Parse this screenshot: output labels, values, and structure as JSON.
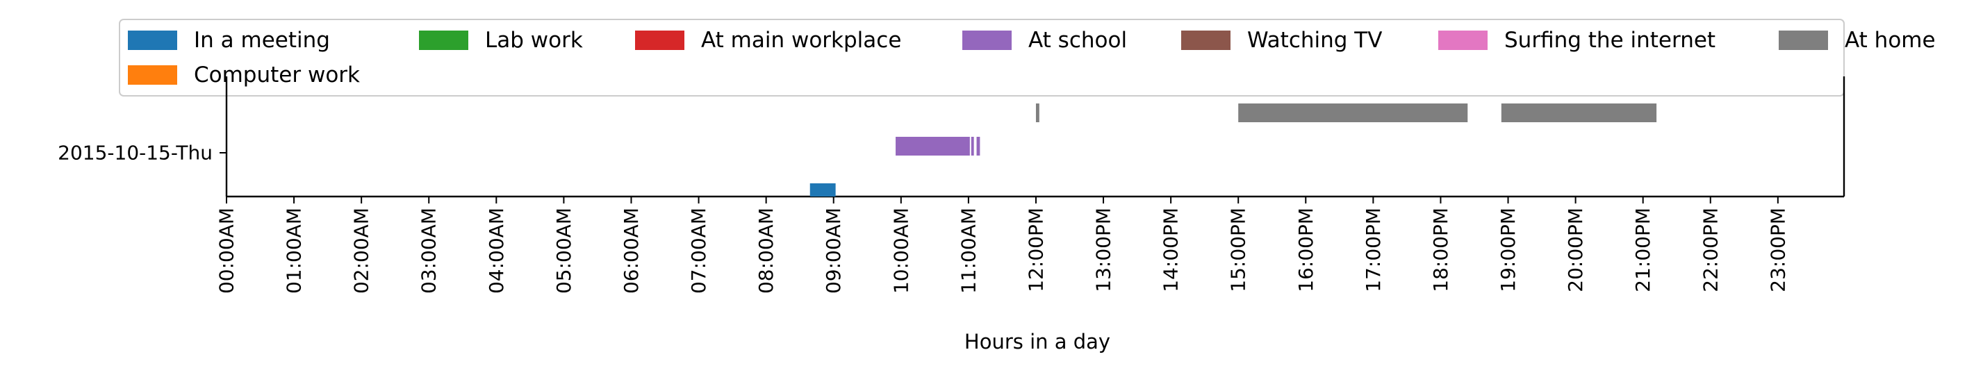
{
  "chart_data": {
    "type": "timeline",
    "title": "",
    "xlabel": "Hours in a day",
    "ylabel": "",
    "xlim": [
      0,
      24
    ],
    "grid": false,
    "legend_placement": "top",
    "y_categories": [
      "2015-10-15-Thu"
    ],
    "x_ticks": [
      {
        "value": 0,
        "label": "00:00AM"
      },
      {
        "value": 1,
        "label": "01:00AM"
      },
      {
        "value": 2,
        "label": "02:00AM"
      },
      {
        "value": 3,
        "label": "03:00AM"
      },
      {
        "value": 4,
        "label": "04:00AM"
      },
      {
        "value": 5,
        "label": "05:00AM"
      },
      {
        "value": 6,
        "label": "06:00AM"
      },
      {
        "value": 7,
        "label": "07:00AM"
      },
      {
        "value": 8,
        "label": "08:00AM"
      },
      {
        "value": 9,
        "label": "09:00AM"
      },
      {
        "value": 10,
        "label": "10:00AM"
      },
      {
        "value": 11,
        "label": "11:00AM"
      },
      {
        "value": 12,
        "label": "12:00PM"
      },
      {
        "value": 13,
        "label": "13:00PM"
      },
      {
        "value": 14,
        "label": "14:00PM"
      },
      {
        "value": 15,
        "label": "15:00PM"
      },
      {
        "value": 16,
        "label": "16:00PM"
      },
      {
        "value": 17,
        "label": "17:00PM"
      },
      {
        "value": 18,
        "label": "18:00PM"
      },
      {
        "value": 19,
        "label": "19:00PM"
      },
      {
        "value": 20,
        "label": "20:00PM"
      },
      {
        "value": 21,
        "label": "21:00PM"
      },
      {
        "value": 22,
        "label": "22:00PM"
      },
      {
        "value": 23,
        "label": "23:00PM"
      }
    ],
    "series": [
      {
        "name": "In a meeting",
        "color": "#1f77b4",
        "intervals": [
          [
            8.65,
            9.03
          ]
        ]
      },
      {
        "name": "Lab work",
        "color": "#2ca02c",
        "intervals": []
      },
      {
        "name": "At main workplace",
        "color": "#d62728",
        "intervals": []
      },
      {
        "name": "At school",
        "color": "#9467bd",
        "intervals": [
          [
            9.92,
            11.02
          ],
          [
            11.04,
            11.08
          ],
          [
            11.12,
            11.17
          ]
        ]
      },
      {
        "name": "Watching TV",
        "color": "#8c564b",
        "intervals": []
      },
      {
        "name": "Surfing the internet",
        "color": "#e377c2",
        "intervals": []
      },
      {
        "name": "At home",
        "color": "#7f7f7f",
        "intervals": [
          [
            12.0,
            12.05
          ],
          [
            15.0,
            18.4
          ],
          [
            18.9,
            21.2
          ]
        ]
      },
      {
        "name": "Computer work",
        "color": "#ff7f0e",
        "intervals": []
      }
    ]
  }
}
